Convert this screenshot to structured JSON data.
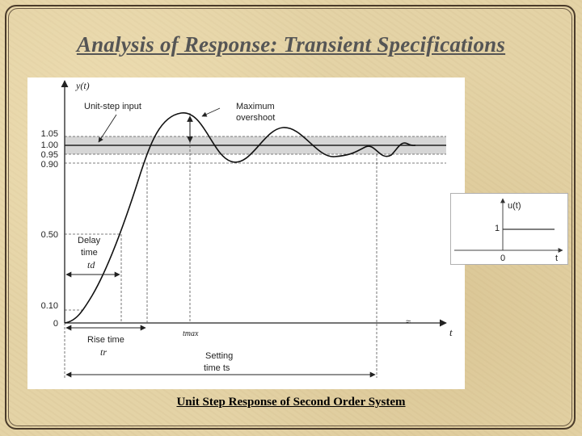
{
  "slide": {
    "title": "Analysis of Response: Transient Specifications",
    "caption": "Unit Step Response of Second Order System"
  },
  "figure": {
    "y_axis_label": "y(t)",
    "x_axis_label": "t",
    "y_ticks": [
      "1.05",
      "1.00",
      "0.95",
      "0.90",
      "0.50",
      "0.10",
      "0"
    ],
    "annotations": {
      "unit_step_input": "Unit-step input",
      "maximum_overshoot_line1": "Maximum",
      "maximum_overshoot_line2": "overshoot",
      "delay_time_line1": "Delay",
      "delay_time_line2": "time",
      "delay_time_symbol": "td",
      "rise_time": "Rise time",
      "rise_time_symbol": "tr",
      "tmax_symbol": "tmax",
      "settling_time_line1": "Setting",
      "settling_time_line2": "time ts"
    }
  },
  "inset": {
    "y_label": "u(t)",
    "level_label": "1",
    "origin_label": "0",
    "x_label": "t"
  }
}
